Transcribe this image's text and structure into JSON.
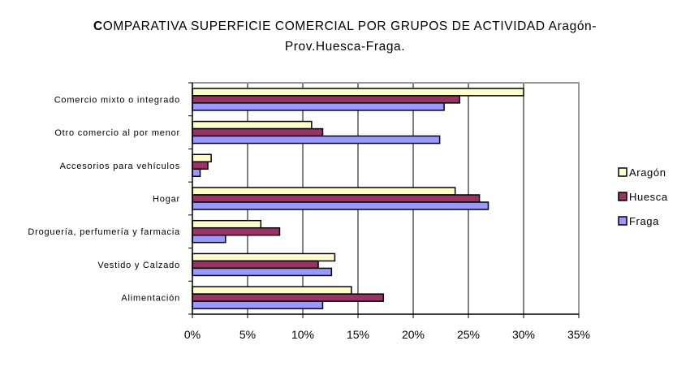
{
  "chart_data": {
    "type": "bar",
    "orientation": "horizontal",
    "title": "COMPARATIVA SUPERFICIE COMERCIAL POR GRUPOS DE ACTIVIDAD Aragón-Prov.Huesca-Fraga.",
    "xlabel": "",
    "ylabel": "",
    "xlim": [
      0,
      35
    ],
    "x_ticks": [
      "0%",
      "5%",
      "10%",
      "15%",
      "20%",
      "25%",
      "30%",
      "35%"
    ],
    "grid": true,
    "legend_position": "right",
    "categories": [
      "Comercio mixto o integrado",
      "Otro comercio al por menor",
      "Accesorios para vehículos",
      "Hogar",
      "Droguería, perfumería y farmacia",
      "Vestido y Calzado",
      "Alimentación"
    ],
    "series": [
      {
        "name": "Aragón",
        "color": "#FFFFCC",
        "values": [
          30.0,
          10.8,
          1.7,
          23.8,
          6.2,
          12.9,
          14.4
        ]
      },
      {
        "name": "Huesca",
        "color": "#993366",
        "values": [
          24.2,
          11.8,
          1.4,
          26.0,
          7.9,
          11.4,
          17.3
        ]
      },
      {
        "name": "Fraga",
        "color": "#9999FF",
        "values": [
          22.8,
          22.4,
          0.7,
          26.8,
          3.0,
          12.6,
          11.8
        ]
      }
    ]
  }
}
